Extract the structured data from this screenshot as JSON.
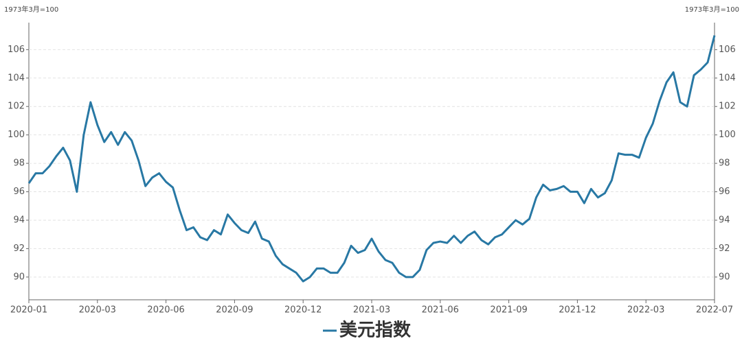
{
  "chart_data": {
    "type": "line",
    "y_label": "1973年3月=100",
    "y2_label": "1973年3月=100",
    "categories": [
      "2020-01",
      null,
      null,
      null,
      null,
      null,
      null,
      null,
      null,
      null,
      "2020-03",
      null,
      null,
      null,
      null,
      null,
      null,
      null,
      null,
      null,
      "2020-06",
      null,
      null,
      null,
      null,
      null,
      null,
      null,
      null,
      null,
      "2020-09",
      null,
      null,
      null,
      null,
      null,
      null,
      null,
      null,
      null,
      "2020-12",
      null,
      null,
      null,
      null,
      null,
      null,
      null,
      null,
      null,
      "2021-03",
      null,
      null,
      null,
      null,
      null,
      null,
      null,
      null,
      null,
      "2021-06",
      null,
      null,
      null,
      null,
      null,
      null,
      null,
      null,
      null,
      "2021-09",
      null,
      null,
      null,
      null,
      null,
      null,
      null,
      null,
      null,
      "2021-12",
      null,
      null,
      null,
      null,
      null,
      null,
      null,
      null,
      null,
      "2022-03",
      null,
      null,
      null,
      null,
      null,
      null,
      null,
      null,
      null,
      "2022-07"
    ],
    "series": [
      {
        "name": "美元指数",
        "color": "#2878a4",
        "values": [
          96.6,
          97.3,
          97.3,
          97.8,
          98.5,
          99.1,
          98.2,
          96.0,
          100.0,
          102.3,
          100.7,
          99.5,
          100.2,
          99.3,
          100.2,
          99.6,
          98.2,
          96.4,
          97.0,
          97.3,
          96.7,
          96.3,
          94.7,
          93.3,
          93.5,
          92.8,
          92.6,
          93.3,
          93.0,
          94.4,
          93.8,
          93.3,
          93.1,
          93.9,
          92.7,
          92.5,
          91.5,
          90.9,
          90.6,
          90.3,
          89.7,
          90.0,
          90.6,
          90.6,
          90.3,
          90.3,
          91.0,
          92.2,
          91.7,
          91.9,
          92.7,
          91.8,
          91.2,
          91.0,
          90.3,
          90.0,
          90.0,
          90.5,
          91.9,
          92.4,
          92.5,
          92.4,
          92.9,
          92.4,
          92.9,
          93.2,
          92.6,
          92.3,
          92.8,
          93.0,
          93.5,
          94.0,
          93.7,
          94.1,
          95.6,
          96.5,
          96.1,
          96.2,
          96.4,
          96.0,
          96.0,
          95.2,
          96.2,
          95.6,
          95.9,
          96.8,
          98.7,
          98.6,
          98.6,
          98.4,
          99.8,
          100.8,
          102.4,
          103.7,
          104.4,
          102.3,
          102.0,
          104.2,
          104.6,
          105.1,
          107.0
        ]
      }
    ],
    "ylim": [
      88.4,
      107.9
    ],
    "yticks": [
      90,
      92,
      94,
      96,
      98,
      100,
      102,
      104,
      106
    ],
    "y2lim": [
      88.4,
      107.9
    ],
    "y2ticks": [
      90,
      92,
      94,
      96,
      98,
      100,
      102,
      104,
      106
    ],
    "grid": true,
    "legend": "bottom"
  }
}
